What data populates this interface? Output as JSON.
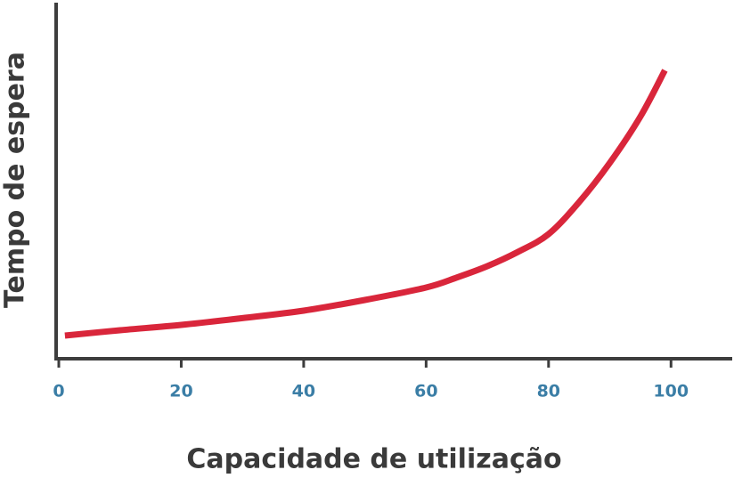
{
  "chart_data": {
    "type": "line",
    "x_label": "Capacidade de utilização",
    "y_label": "Tempo de espera",
    "x": [
      1,
      10,
      20,
      30,
      40,
      50,
      60,
      65,
      70,
      75,
      80,
      85,
      90,
      95,
      99
    ],
    "series": [
      {
        "name": "Tempo de espera",
        "color": "#d9263b",
        "values": [
          6.5,
          8,
          9.5,
          11.4,
          13.5,
          16.5,
          20,
          22.8,
          26,
          30,
          35,
          44,
          55,
          68,
          81
        ]
      }
    ],
    "xlim": [
      0,
      110
    ],
    "xticks": [
      0,
      20,
      40,
      60,
      80,
      100
    ],
    "ylim": [
      0,
      100
    ],
    "grid": false
  }
}
